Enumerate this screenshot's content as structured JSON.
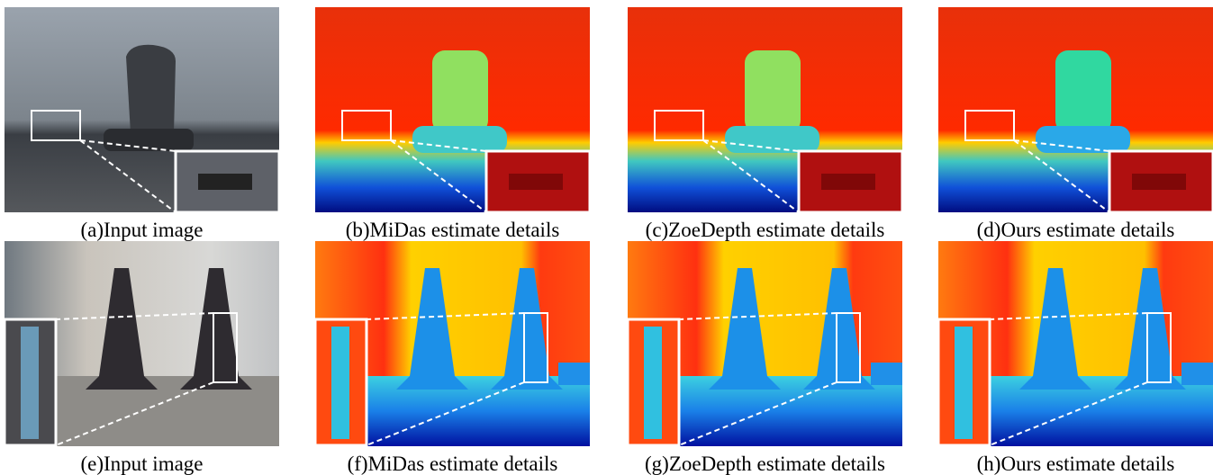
{
  "panels": [
    {
      "caption": "(a)Input image"
    },
    {
      "caption": "(b)MiDas estimate details"
    },
    {
      "caption": "(c)ZoeDepth estimate details"
    },
    {
      "caption": "(d)Ours estimate details"
    },
    {
      "caption": "(e)Input image"
    },
    {
      "caption": "(f)MiDas estimate details"
    },
    {
      "caption": "(g)ZoeDepth estimate details"
    },
    {
      "caption": "(h)Ours estimate details"
    }
  ]
}
